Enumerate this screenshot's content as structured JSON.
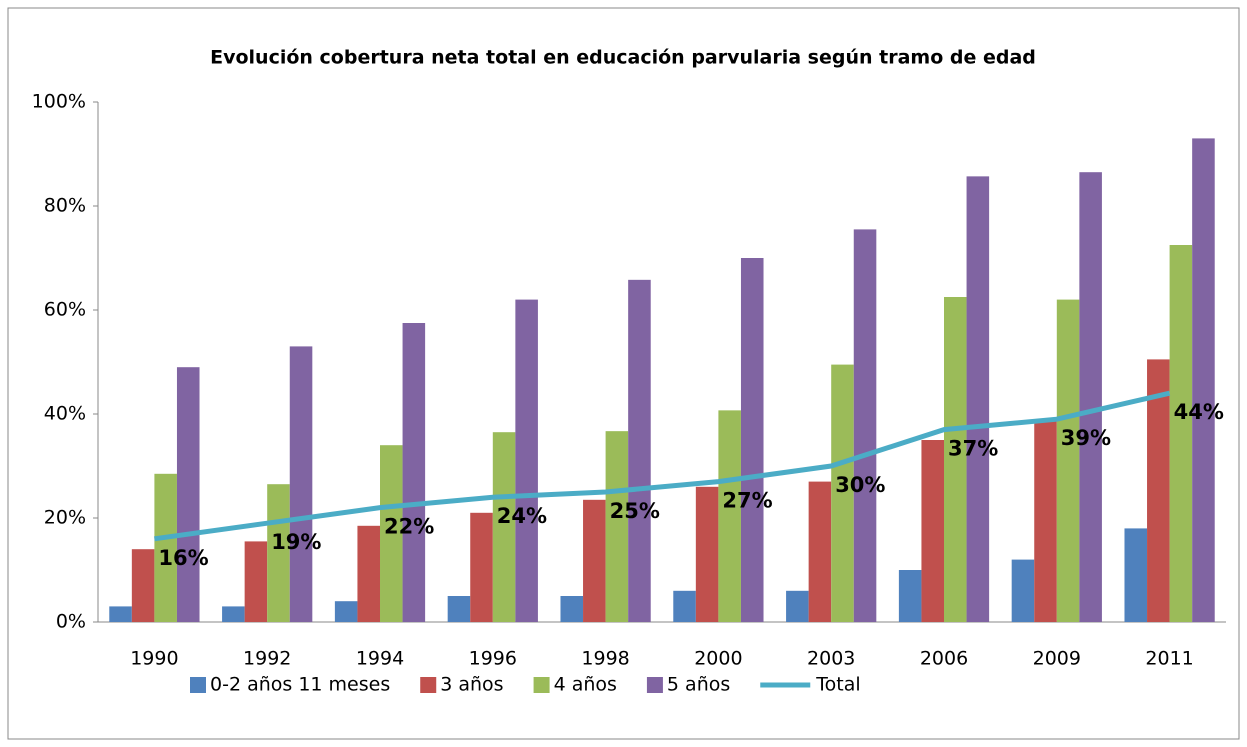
{
  "chart_data": {
    "type": "bar_line",
    "title": "Evolución cobertura neta total en educación parvularia según tramo de edad",
    "categories": [
      "1990",
      "1992",
      "1994",
      "1996",
      "1998",
      "2000",
      "2003",
      "2006",
      "2009",
      "2011"
    ],
    "series": [
      {
        "name": "0-2 años 11 meses",
        "type": "bar",
        "color": "#4f81bd",
        "values": [
          3,
          3,
          4,
          5,
          5,
          6,
          6,
          10,
          12,
          18
        ]
      },
      {
        "name": "3 años",
        "type": "bar",
        "color": "#c0504d",
        "values": [
          14,
          15.5,
          18.5,
          21,
          23.5,
          26,
          27,
          35,
          39,
          50.5
        ]
      },
      {
        "name": "4 años",
        "type": "bar",
        "color": "#9bbb59",
        "values": [
          28.5,
          26.5,
          34,
          36.5,
          36.7,
          40.7,
          49.5,
          62.5,
          62,
          72.5
        ]
      },
      {
        "name": "5 años",
        "type": "bar",
        "color": "#8064a2",
        "values": [
          49,
          53,
          57.5,
          62,
          65.8,
          70,
          75.5,
          85.7,
          86.5,
          93
        ]
      },
      {
        "name": "Total",
        "type": "line",
        "color": "#4bacc6",
        "values": [
          16,
          19,
          22,
          24,
          25,
          27,
          30,
          37,
          39,
          44
        ],
        "value_labels": [
          "16%",
          "19%",
          "22%",
          "24%",
          "25%",
          "27%",
          "30%",
          "37%",
          "39%",
          "44%"
        ]
      }
    ],
    "ylim": [
      0,
      100
    ],
    "yticks": [
      {
        "value": 0,
        "label": "0%"
      },
      {
        "value": 20,
        "label": "20%"
      },
      {
        "value": 40,
        "label": "40%"
      },
      {
        "value": 60,
        "label": "60%"
      },
      {
        "value": 80,
        "label": "80%"
      },
      {
        "value": 100,
        "label": "100%"
      }
    ],
    "legend": "bottom"
  }
}
